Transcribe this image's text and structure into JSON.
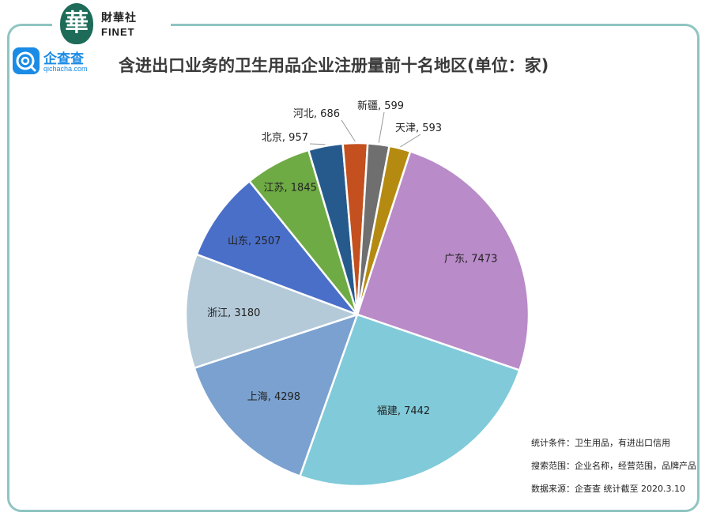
{
  "brand": {
    "finet_seal_char": "華",
    "finet_name": "財華社",
    "finet_en": "FINET",
    "qcc_name": "企查查",
    "qcc_domain": "qichacha.com",
    "accent": "#8fc5c2",
    "qcc_color": "#1a8be6"
  },
  "notes": {
    "condition": "统计条件：卫生用品，有进出口信用",
    "scope": "搜索范围：企业名称，经营范围，品牌产品",
    "source": "数据来源：企查查   统计截至 2020.3.10"
  },
  "chart_data": {
    "type": "pie",
    "title": "含进出口业务的卫生用品企业注册量前十名地区(单位：家)",
    "start_angle_deg": 18,
    "direction": "clockwise",
    "slices": [
      {
        "name": "广东",
        "value": 7473,
        "color": "#b98bc8"
      },
      {
        "name": "福建",
        "value": 7442,
        "color": "#80cad9"
      },
      {
        "name": "上海",
        "value": 4298,
        "color": "#7aa1cf"
      },
      {
        "name": "浙江",
        "value": 3180,
        "color": "#b4cad9"
      },
      {
        "name": "山东",
        "value": 2507,
        "color": "#4a6fc9"
      },
      {
        "name": "江苏",
        "value": 1845,
        "color": "#6fab45"
      },
      {
        "name": "北京",
        "value": 957,
        "color": "#275a8c"
      },
      {
        "name": "河北",
        "value": 686,
        "color": "#c3501e"
      },
      {
        "name": "新疆",
        "value": 599,
        "color": "#6f6f6f"
      },
      {
        "name": "天津",
        "value": 593,
        "color": "#b58a10"
      }
    ]
  }
}
